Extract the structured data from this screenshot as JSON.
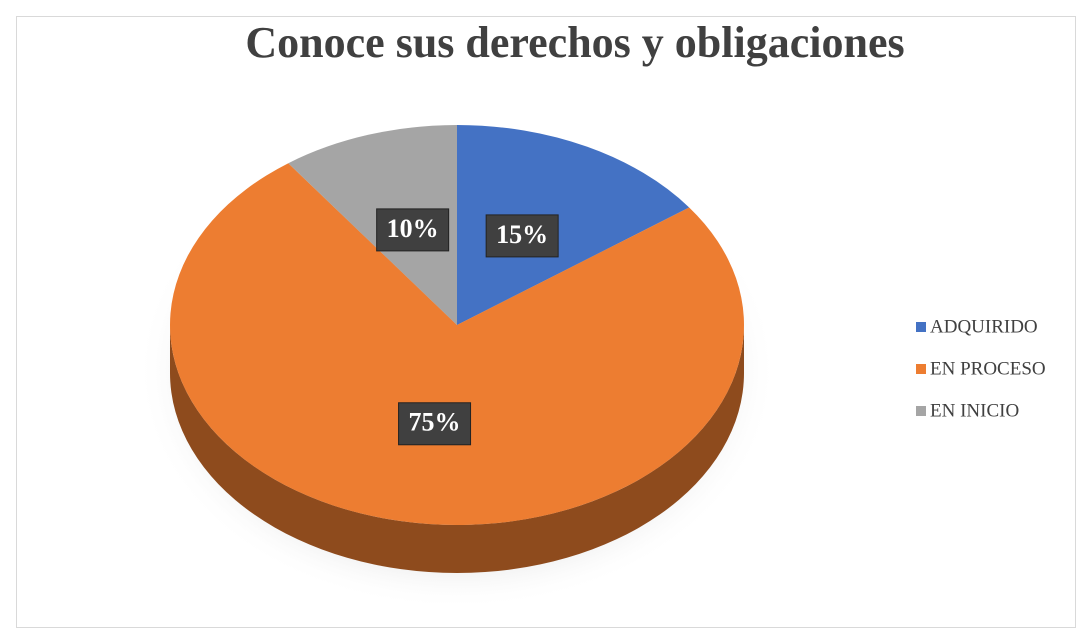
{
  "chart_data": {
    "type": "pie",
    "title": "Conoce sus derechos y obligaciones",
    "categories": [
      "ADQUIRIDO",
      "EN PROCESO",
      "EN INICIO"
    ],
    "values": [
      15,
      75,
      10
    ],
    "value_labels": [
      "15%",
      "75%",
      "10%"
    ],
    "colors": [
      "#4472c4",
      "#ed7d31",
      "#a5a5a5"
    ],
    "legend": "right"
  }
}
